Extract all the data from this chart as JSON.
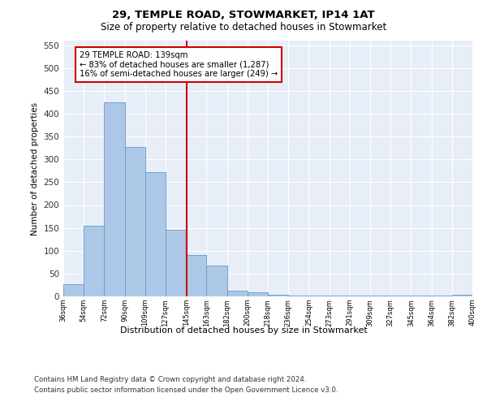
{
  "title1": "29, TEMPLE ROAD, STOWMARKET, IP14 1AT",
  "title2": "Size of property relative to detached houses in Stowmarket",
  "xlabel": "Distribution of detached houses by size in Stowmarket",
  "ylabel": "Number of detached properties",
  "bar_values": [
    27,
    155,
    425,
    327,
    272,
    145,
    90,
    68,
    12,
    9,
    3,
    2,
    1,
    1,
    1,
    1,
    1,
    1,
    1,
    3
  ],
  "x_labels": [
    "36sqm",
    "54sqm",
    "72sqm",
    "90sqm",
    "109sqm",
    "127sqm",
    "145sqm",
    "163sqm",
    "182sqm",
    "200sqm",
    "218sqm",
    "236sqm",
    "254sqm",
    "273sqm",
    "291sqm",
    "309sqm",
    "327sqm",
    "345sqm",
    "364sqm",
    "382sqm",
    "400sqm"
  ],
  "bar_color": "#adc8e6",
  "bar_edge_color": "#6699cc",
  "bar_edge_width": 0.6,
  "bg_color": "#e8eef8",
  "grid_color": "#ffffff",
  "red_line_x": 5.55,
  "annotation_text": "29 TEMPLE ROAD: 139sqm\n← 83% of detached houses are smaller (1,287)\n16% of semi-detached houses are larger (249) →",
  "annotation_box_color": "#ffffff",
  "annotation_box_edge": "#cc0000",
  "ylim": [
    0,
    560
  ],
  "yticks": [
    0,
    50,
    100,
    150,
    200,
    250,
    300,
    350,
    400,
    450,
    500,
    550
  ],
  "footnote1": "Contains HM Land Registry data © Crown copyright and database right 2024.",
  "footnote2": "Contains public sector information licensed under the Open Government Licence v3.0."
}
